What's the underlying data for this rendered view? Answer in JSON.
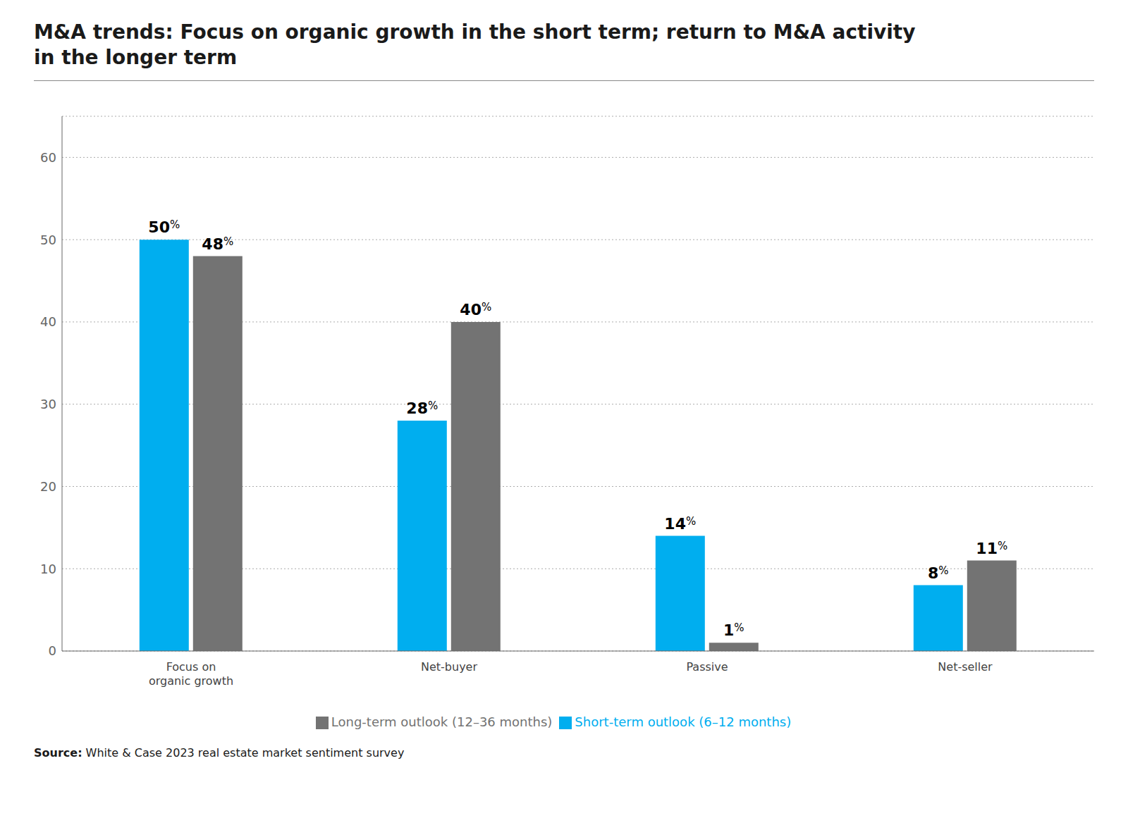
{
  "chart_data": {
    "type": "bar",
    "title": "M&A trends: Focus on organic growth in the short term; return to M&A activity\nin the longer term",
    "categories": [
      "Focus on\norganic growth",
      "Net-buyer",
      "Passive",
      "Net-seller"
    ],
    "series": [
      {
        "name": "Short-term outlook (6–12 months)",
        "color": "#00AEEF",
        "values": [
          50,
          28,
          14,
          8
        ],
        "value_labels": [
          "50%",
          "28%",
          "14%",
          "8%"
        ]
      },
      {
        "name": "Long-term outlook (12–36 months)",
        "color": "#737373",
        "values": [
          48,
          40,
          1,
          11
        ],
        "value_labels": [
          "48%",
          "40%",
          "1%",
          "11%"
        ]
      }
    ],
    "ylim": [
      0,
      65
    ],
    "yticks": [
      0,
      10,
      20,
      30,
      40,
      50,
      60
    ],
    "grid": true,
    "legend": "bottom",
    "data_labels": true,
    "annotations": [
      "Source: White & Case 2023 real estate market sentiment survey"
    ]
  }
}
